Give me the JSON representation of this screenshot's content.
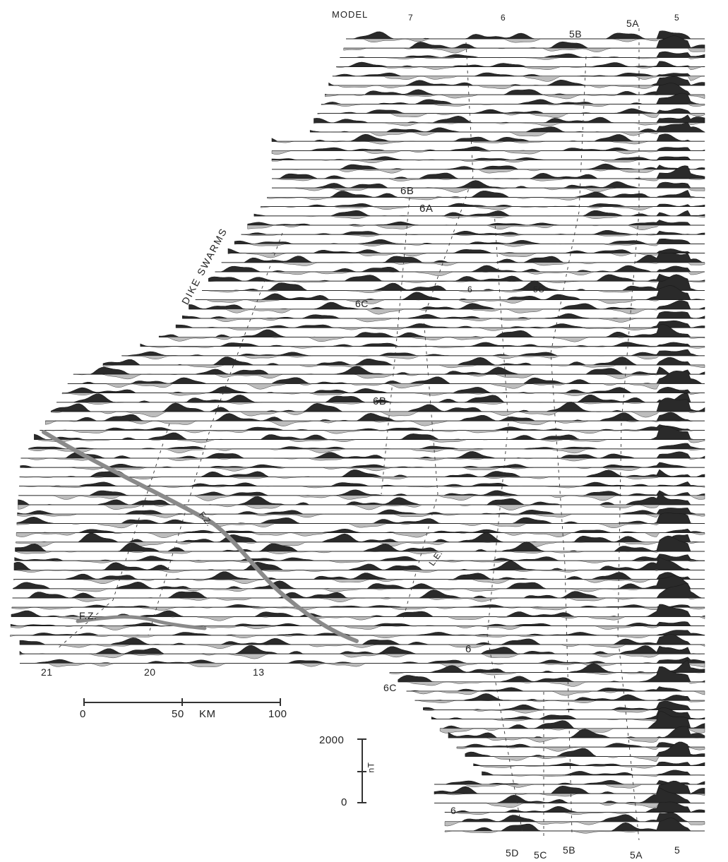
{
  "header": {
    "model_label": "MODEL"
  },
  "labels": {
    "top_anomalies": [
      "7",
      "6",
      "5A",
      "5"
    ],
    "anomaly_5b_top": "5B",
    "anomaly_6b_upper": "6B",
    "anomaly_6a": "6A",
    "dike_swarms": "DIKE SWARMS",
    "anomaly_6_mid": "6",
    "anomaly_5c_mid": "5C",
    "anomaly_6c_upper": "6C",
    "anomaly_6b_lower": "6B",
    "fz_diagonal": "F.Z.",
    "fz_left": "F.Z.",
    "le": "L.E.",
    "bottom_left_anomalies": [
      "21",
      "20",
      "13"
    ],
    "anomaly_6_lower": "6",
    "anomaly_6c_lower": "6C",
    "anomaly_6_bottom": "6",
    "bottom_anomalies": [
      "5D",
      "5C",
      "5B",
      "5A",
      "5"
    ]
  },
  "scale_km": {
    "ticks": [
      "0",
      "50",
      "100"
    ],
    "unit": "KM"
  },
  "scale_nt": {
    "top": "2000",
    "bottom": "0",
    "unit": "nT"
  },
  "colors": {
    "positive_fill": "#2a2a2a",
    "negative_fill": "#bdbdbd",
    "stroke": "#1a1a1a",
    "fz_band": "#8a8a8a"
  }
}
